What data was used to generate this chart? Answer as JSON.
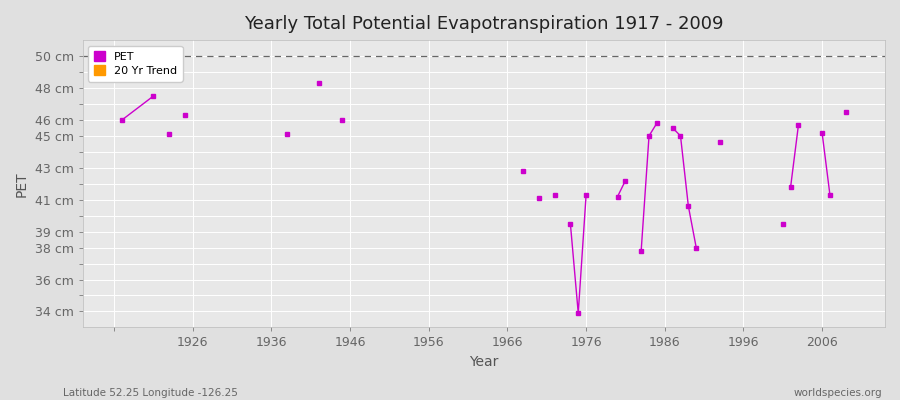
{
  "title": "Yearly Total Potential Evapotranspiration 1917 - 2009",
  "xlabel": "Year",
  "ylabel": "PET",
  "xlim": [
    1912,
    2014
  ],
  "ylim": [
    33.0,
    51.0
  ],
  "background_color": "#e0e0e0",
  "plot_bg_color": "#e8e8e8",
  "dashed_line_y": 50,
  "pet_color": "#cc00cc",
  "trend_color": "#ff9900",
  "pet_data": [
    [
      1917,
      46.0
    ],
    [
      1921,
      47.5
    ],
    [
      1922,
      null
    ],
    [
      1923,
      45.1
    ],
    [
      1924,
      null
    ],
    [
      1925,
      46.3
    ],
    [
      null,
      null
    ],
    [
      1938,
      45.1
    ],
    [
      null,
      null
    ],
    [
      1942,
      48.3
    ],
    [
      null,
      null
    ],
    [
      1945,
      46.0
    ],
    [
      null,
      null
    ],
    [
      1968,
      42.8
    ],
    [
      null,
      null
    ],
    [
      1970,
      41.1
    ],
    [
      null,
      null
    ],
    [
      1972,
      41.3
    ],
    [
      null,
      null
    ],
    [
      1974,
      39.5
    ],
    [
      1975,
      33.9
    ],
    [
      1976,
      41.3
    ],
    [
      null,
      null
    ],
    [
      1980,
      41.2
    ],
    [
      1981,
      42.2
    ],
    [
      null,
      null
    ],
    [
      1983,
      37.8
    ],
    [
      1984,
      45.0
    ],
    [
      1985,
      45.8
    ],
    [
      null,
      null
    ],
    [
      1987,
      45.5
    ],
    [
      1988,
      45.0
    ],
    [
      1989,
      40.6
    ],
    [
      1990,
      38.0
    ],
    [
      null,
      null
    ],
    [
      1993,
      44.6
    ],
    [
      null,
      null
    ],
    [
      2001,
      39.5
    ],
    [
      null,
      null
    ],
    [
      2002,
      41.8
    ],
    [
      2003,
      45.7
    ],
    [
      null,
      null
    ],
    [
      2006,
      45.2
    ],
    [
      2007,
      41.3
    ],
    [
      null,
      null
    ],
    [
      2009,
      46.5
    ]
  ],
  "ytick_positions": [
    34,
    36,
    38,
    39,
    41,
    43,
    45,
    46,
    48,
    50
  ],
  "ytick_all": [
    34,
    35,
    36,
    37,
    38,
    39,
    40,
    41,
    42,
    43,
    44,
    45,
    46,
    47,
    48,
    49,
    50
  ],
  "xticks": [
    1916,
    1926,
    1936,
    1946,
    1956,
    1966,
    1976,
    1986,
    1996,
    2006
  ],
  "xticklabels": [
    "",
    "1926",
    "1936",
    "1946",
    "1956",
    "1966",
    "1976",
    "1986",
    "1996",
    "2006"
  ],
  "footnote_left": "Latitude 52.25 Longitude -126.25",
  "footnote_right": "worldspecies.org"
}
